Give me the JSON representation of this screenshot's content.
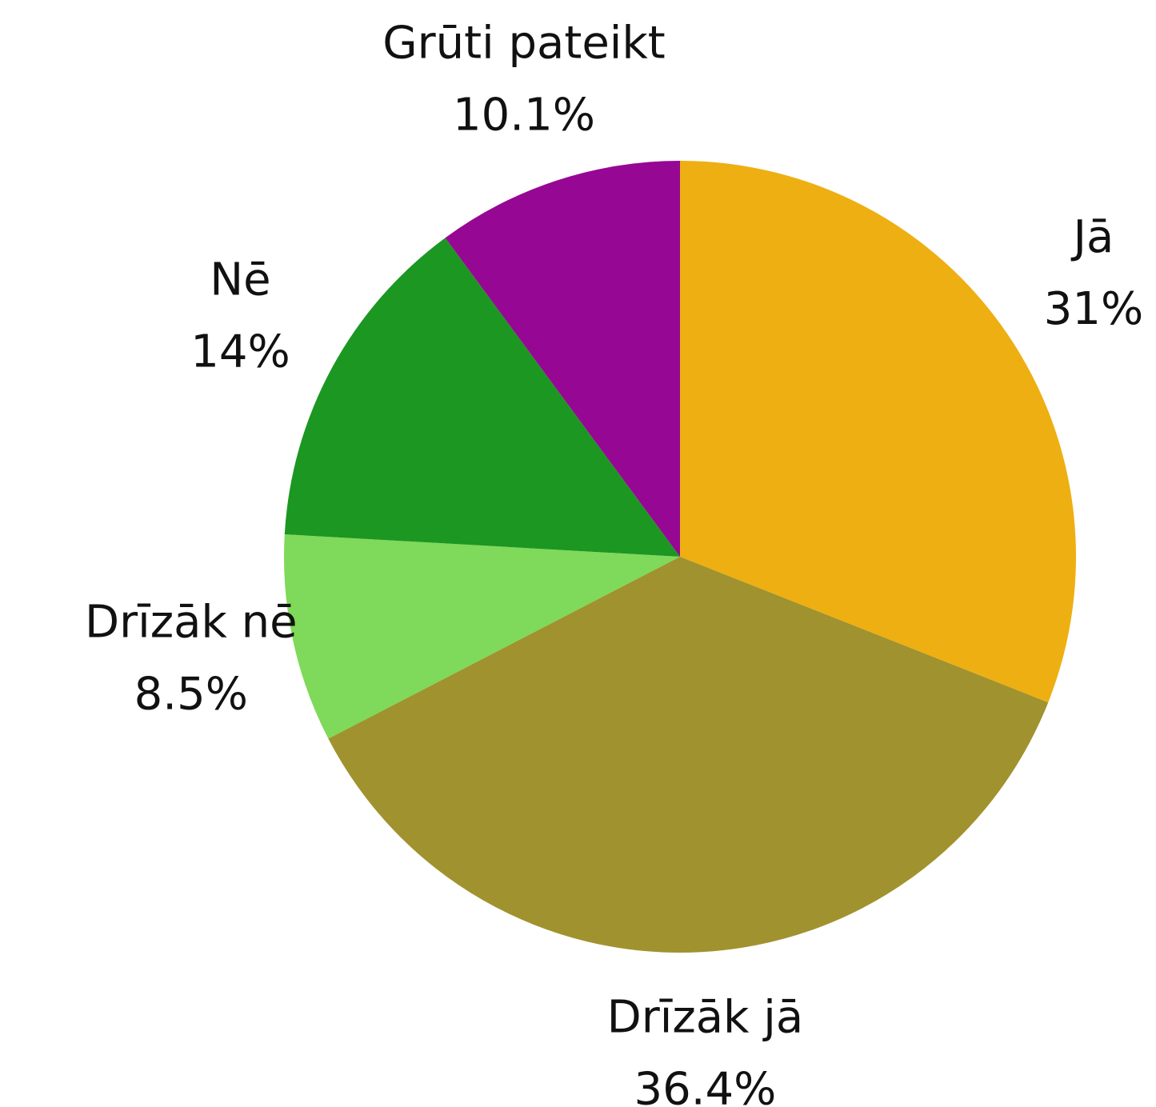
{
  "chart_data": {
    "type": "pie",
    "categories": [
      "Jā",
      "Drīzāk jā",
      "Drīzāk nē",
      "Nē",
      "Grūti pateikt"
    ],
    "values": [
      31,
      36.4,
      8.5,
      14,
      10.1
    ],
    "value_labels": [
      "31%",
      "36.4%",
      "8.5%",
      "14%",
      "10.1%"
    ],
    "colors": [
      "#eeaf12",
      "#a0922e",
      "#7fd95a",
      "#1c9721",
      "#960794"
    ]
  }
}
